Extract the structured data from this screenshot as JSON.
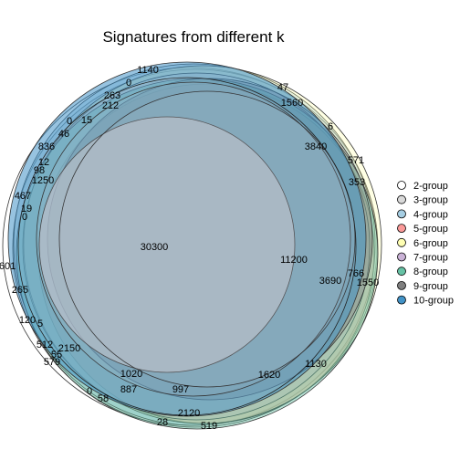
{
  "title": "Signatures from different k",
  "legend": [
    {
      "label": "2-group",
      "color": "#ffffff"
    },
    {
      "label": "3-group",
      "color": "#d9d9d9"
    },
    {
      "label": "4-group",
      "color": "#a6cee3"
    },
    {
      "label": "5-group",
      "color": "#fb9a99"
    },
    {
      "label": "6-group",
      "color": "#ffffb3"
    },
    {
      "label": "7-group",
      "color": "#cab2d6"
    },
    {
      "label": "8-group",
      "color": "#66c2a5"
    },
    {
      "label": "9-group",
      "color": "#7f7f7f"
    },
    {
      "label": "10-group",
      "color": "#4292c6"
    }
  ],
  "region_labels": [
    "1140",
    "0",
    "263",
    "212",
    "47",
    "1560",
    "0",
    "15",
    "6",
    "46",
    "836",
    "3840",
    "571",
    "12",
    "98",
    "1250",
    "353",
    "467",
    "19",
    "0",
    "30300",
    "11200",
    "601",
    "3690",
    "766",
    "1550",
    "265",
    "120",
    "5",
    "512",
    "2150",
    "55",
    "579",
    "1020",
    "1620",
    "1130",
    "887",
    "997",
    "0",
    "58",
    "2120",
    "28",
    "519"
  ]
}
